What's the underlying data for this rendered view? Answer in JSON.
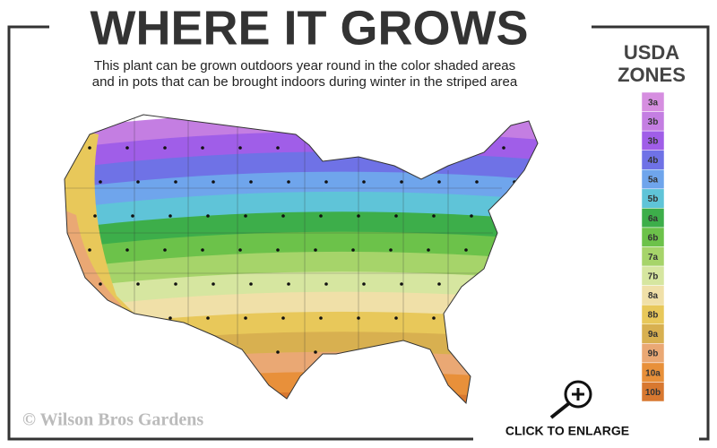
{
  "title": "WHERE IT GROWS",
  "subtitle_lines": [
    "This plant can be grown outdoors year round in the color shaded areas",
    "and in pots that can be brought indoors during winter in the striped area"
  ],
  "legend": {
    "title_lines": [
      "USDA",
      "ZONES"
    ],
    "zones": [
      {
        "label": "3a",
        "color": "#d68ee0"
      },
      {
        "label": "3b",
        "color": "#c47ee2"
      },
      {
        "label": "3b",
        "color": "#a05ee8"
      },
      {
        "label": "4b",
        "color": "#6f72e6"
      },
      {
        "label": "5a",
        "color": "#6fa5ec"
      },
      {
        "label": "5b",
        "color": "#5fc4d8"
      },
      {
        "label": "6a",
        "color": "#3dae4a"
      },
      {
        "label": "6b",
        "color": "#6cc24a"
      },
      {
        "label": "7a",
        "color": "#a6d46a"
      },
      {
        "label": "7b",
        "color": "#d6e6a0"
      },
      {
        "label": "8a",
        "color": "#f0e0a8"
      },
      {
        "label": "8b",
        "color": "#e8c85a"
      },
      {
        "label": "9a",
        "color": "#d8b050"
      },
      {
        "label": "9b",
        "color": "#eaa874"
      },
      {
        "label": "10a",
        "color": "#e8903a"
      },
      {
        "label": "10b",
        "color": "#d87830"
      }
    ]
  },
  "watermark": "© Wilson Bros Gardens",
  "button": "CLICK TO ENLARGE"
}
